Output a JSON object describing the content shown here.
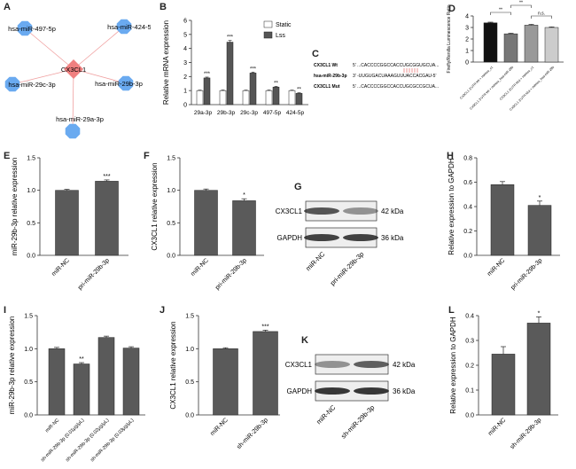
{
  "panels": {
    "A": {
      "label": "A",
      "center": "CX3CL1",
      "nodes": [
        "hsa-miR-497-5p",
        "hsa-miR-424-5p",
        "hsa-miR-29c-3p",
        "hsa-miR-29b-3p",
        "hsa-miR-29a-3p"
      ]
    },
    "C": {
      "label": "C",
      "rows": [
        {
          "name": "CX3CL1 Wt",
          "seq": "5' ...CACCCCGGCCACCUGCGGUGCUA...3'"
        },
        {
          "name": "hsa-miR-29b-3p",
          "seq": "3' -UUGUGACUAAAGUUUACCACGAU-5'"
        },
        {
          "name": "CX3CL1 Mut",
          "seq": "5' ...CACCCCGGCCACCUGCGCCGCUA...3'"
        }
      ]
    },
    "G": {
      "label": "G",
      "bands": [
        "CX3CL1",
        "GAPDH"
      ],
      "kda": [
        "42 kDa",
        "36 kDa"
      ],
      "lanes": [
        "miR-NC",
        "pri-miR-29b-3p"
      ]
    },
    "K": {
      "label": "K",
      "bands": [
        "CX3CL1",
        "GAPDH"
      ],
      "kda": [
        "42 kDa",
        "36 kDa"
      ],
      "lanes": [
        "miR-NC",
        "sh-miR-29b-3p"
      ]
    }
  },
  "chart_data": [
    {
      "id": "B",
      "type": "bar",
      "title": "",
      "ylabel": "Relative mRNA expression",
      "categories": [
        "29a-3p",
        "29b-3p",
        "29c-3p",
        "497-5p",
        "424-5p"
      ],
      "series": [
        {
          "name": "Static",
          "values": [
            1,
            1,
            1,
            1,
            1
          ],
          "color": "#ffffff"
        },
        {
          "name": "Lss",
          "values": [
            1.9,
            4.45,
            2.25,
            1.25,
            0.8
          ],
          "color": "#555555"
        }
      ],
      "errors": [
        [
          0.03,
          0.04,
          0.03,
          0.04,
          0.03
        ],
        [
          0.06,
          0.12,
          0.07,
          0.05,
          0.04
        ]
      ],
      "sig": [
        "***",
        "***",
        "***",
        "**",
        "**"
      ],
      "ylim": [
        0,
        6
      ],
      "ticks": [
        0,
        1,
        2,
        3,
        4,
        5,
        6
      ],
      "legend": [
        "Static",
        "Lss"
      ]
    },
    {
      "id": "D",
      "type": "bar",
      "ylabel": "Firefly/Renilla Luminescence Ratio",
      "categories": [
        "CX3CL1 3'UTR Wt + mimics_c1",
        "CX3CL1 3'UTR Wt + mimics_hsa-miR-29b",
        "CX3CL1 3'UTR Mut + mimics_c1",
        "CX3CL1 3'UTR Mut + mimics_hsa-miR-29b"
      ],
      "values": [
        3.4,
        2.45,
        3.2,
        3.0
      ],
      "colors": [
        "#111111",
        "#777777",
        "#999999",
        "#cccccc"
      ],
      "errors": [
        0.06,
        0.05,
        0.07,
        0.05
      ],
      "brackets": [
        {
          "from": 0,
          "to": 1,
          "text": "**"
        },
        {
          "from": 1,
          "to": 2,
          "text": "**"
        },
        {
          "from": 2,
          "to": 3,
          "text": "n.s."
        }
      ],
      "ylim": [
        0,
        4
      ],
      "ticks": [
        0,
        1,
        2,
        3,
        4
      ]
    },
    {
      "id": "E",
      "type": "bar",
      "ylabel": "miR-29b-3p relative expression",
      "categories": [
        "miR-NC",
        "pri-miR-29b-3p"
      ],
      "values": [
        1.0,
        1.14
      ],
      "errors": [
        0.015,
        0.02
      ],
      "sig": [
        "",
        "***"
      ],
      "ylim": [
        0,
        1.5
      ],
      "ticks": [
        "0.0",
        "0.5",
        "1.0",
        "1.5"
      ]
    },
    {
      "id": "F",
      "type": "bar",
      "ylabel": "CX3CL1 relative expression",
      "categories": [
        "miR-NC",
        "pri-miR-29b-3p"
      ],
      "values": [
        1.0,
        0.84
      ],
      "errors": [
        0.02,
        0.03
      ],
      "sig": [
        "",
        "*"
      ],
      "ylim": [
        0,
        1.5
      ],
      "ticks": [
        "0.0",
        "0.5",
        "1.0",
        "1.5"
      ]
    },
    {
      "id": "H",
      "type": "bar",
      "ylabel": "Relative expression to GAPDH",
      "categories": [
        "miR-NC",
        "pri-miR-29b-3p"
      ],
      "values": [
        0.58,
        0.41
      ],
      "errors": [
        0.025,
        0.035
      ],
      "sig": [
        "",
        "*"
      ],
      "ylim": [
        0,
        0.8
      ],
      "ticks": [
        "0.0",
        "0.2",
        "0.4",
        "0.6",
        "0.8"
      ]
    },
    {
      "id": "I",
      "type": "bar",
      "ylabel": "miR-29b-3p relative expression",
      "categories": [
        "miR-NC",
        "sh-miR-29b-3p (0.01μg/μL)",
        "sh-miR-29b-3p (0.02μg/μL)",
        "sh-miR-29b-3p (0.03μg/μL)"
      ],
      "values": [
        1.0,
        0.77,
        1.17,
        1.01
      ],
      "errors": [
        0.02,
        0.02,
        0.02,
        0.02
      ],
      "sig": [
        "",
        "**",
        "",
        ""
      ],
      "ylim": [
        0,
        1.5
      ],
      "ticks": [
        "0.0",
        "0.5",
        "1.0",
        "1.5"
      ]
    },
    {
      "id": "J",
      "type": "bar",
      "ylabel": "CX3CL1 relative expression",
      "categories": [
        "miR-NC",
        "sh-miR-29b-3p"
      ],
      "values": [
        1.0,
        1.26
      ],
      "errors": [
        0.015,
        0.02
      ],
      "sig": [
        "",
        "***"
      ],
      "ylim": [
        0,
        1.5
      ],
      "ticks": [
        "0.0",
        "0.5",
        "1.0",
        "1.5"
      ]
    },
    {
      "id": "L",
      "type": "bar",
      "ylabel": "Relative expression to GAPDH",
      "categories": [
        "miR-NC",
        "sh-miR-29b-3p"
      ],
      "values": [
        0.245,
        0.37
      ],
      "errors": [
        0.03,
        0.025
      ],
      "sig": [
        "",
        "*"
      ],
      "ylim": [
        0,
        0.4
      ],
      "ticks": [
        "0.0",
        "0.1",
        "0.2",
        "0.3",
        "0.4"
      ]
    }
  ]
}
